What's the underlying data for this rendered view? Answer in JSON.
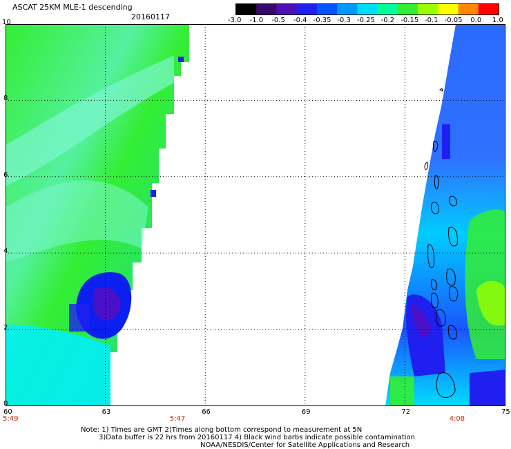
{
  "title": "ASCAT 25KM MLE-1 descending",
  "date": "20160117",
  "colorbar": {
    "labels": [
      "-3.0",
      "-1.0",
      "-0.5",
      "-0.4",
      "-0.35",
      "-0.3",
      "-0.25",
      "-0.2",
      "-0.15",
      "-0.1",
      "-0.05",
      "0.0",
      "1.0"
    ],
    "colors": [
      "#000000",
      "#3a0a6a",
      "#4b0fb5",
      "#1f1ff0",
      "#0055ff",
      "#0099ff",
      "#00ddff",
      "#00ff99",
      "#33ee33",
      "#99ff00",
      "#ffff00",
      "#ff8800",
      "#ff0000"
    ]
  },
  "map": {
    "lon_ticks": [
      "60",
      "63",
      "66",
      "69",
      "72",
      "75"
    ],
    "lat_ticks": [
      "0",
      "2",
      "4",
      "6",
      "8",
      "10"
    ],
    "lon_range": [
      60,
      75
    ],
    "lat_range": [
      0,
      10
    ],
    "grid": "dotted"
  },
  "times": [
    {
      "label": "5:49",
      "lon": 60
    },
    {
      "label": "5:47",
      "lon": 65.1
    },
    {
      "label": "4:08",
      "lon": 73.5
    }
  ],
  "notes": {
    "line1": "Note: 1) Times are GMT 2)Times along bottom correspond to measurement at 5N",
    "line2": "3)Data buffer is 22 hrs from 20160117 4) Black wind barbs indicate possible contamination",
    "line3": "NOAA/NESDIS/Center for Satellite Applications and Research"
  }
}
